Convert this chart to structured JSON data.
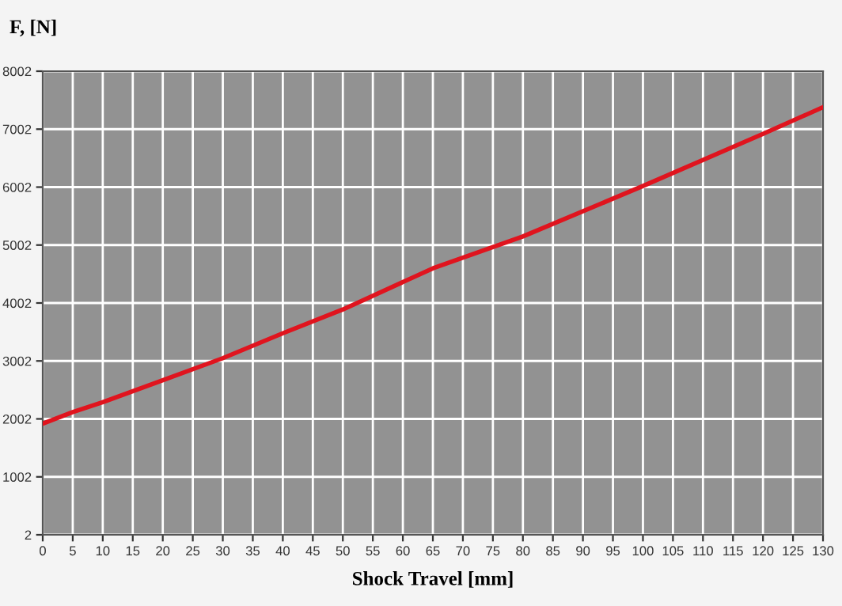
{
  "chart_data": {
    "type": "line",
    "title": "F, [N]",
    "xlabel": "Shock Travel [mm]",
    "x": [
      0,
      5,
      10,
      20,
      30,
      40,
      50,
      65,
      80,
      100,
      120,
      130
    ],
    "series": [
      {
        "color": "#e0141e",
        "values": [
          1920,
          2120,
          2290,
          2670,
          3050,
          3480,
          3890,
          4600,
          5150,
          6020,
          6920,
          7380
        ]
      }
    ],
    "xlim": [
      0,
      130
    ],
    "xticks": [
      0,
      5,
      10,
      15,
      20,
      25,
      30,
      35,
      40,
      45,
      50,
      55,
      60,
      65,
      70,
      75,
      80,
      85,
      90,
      95,
      100,
      105,
      110,
      115,
      120,
      125,
      130
    ],
    "ylim": [
      2,
      8002
    ],
    "yticks": [
      2,
      1002,
      2002,
      3002,
      4002,
      5002,
      6002,
      7002,
      8002
    ],
    "grid": true,
    "marker": "none",
    "line_style": "solid"
  }
}
